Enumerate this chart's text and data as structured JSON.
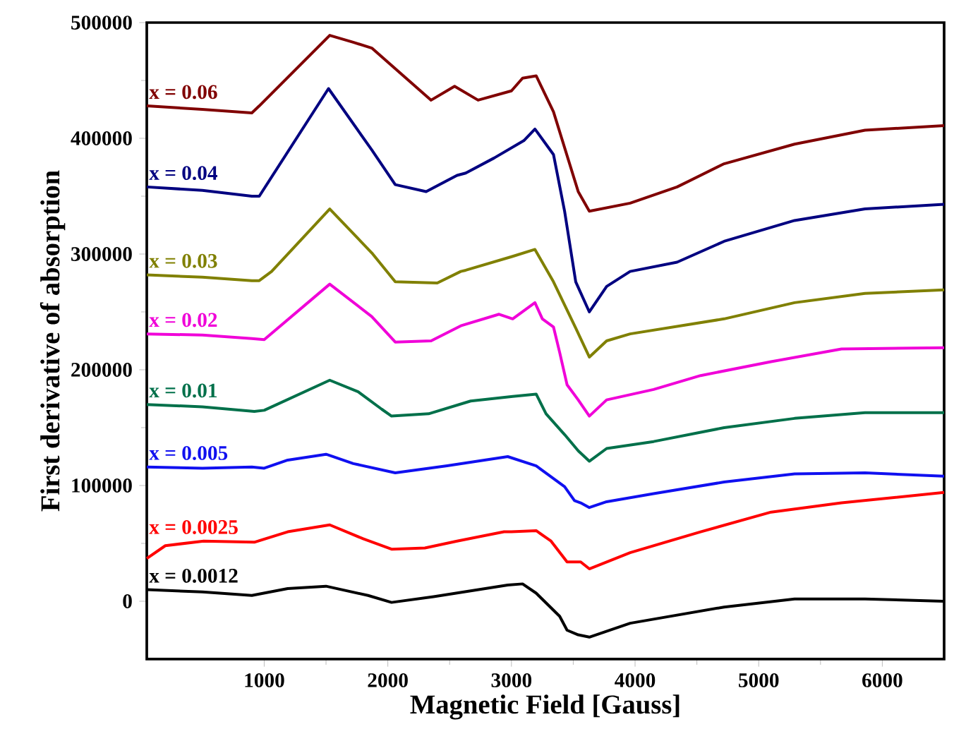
{
  "chart_data": {
    "type": "line",
    "xlabel": "Magnetic Field [Gauss]",
    "ylabel": "First derivative of absorption",
    "xlim": [
      50,
      6500
    ],
    "ylim": [
      -50000,
      500000
    ],
    "xticks": [
      1000,
      2000,
      3000,
      4000,
      5000,
      6000
    ],
    "yticks": [
      0,
      100000,
      200000,
      300000,
      400000,
      500000
    ],
    "grid": false,
    "legend": false,
    "marker": "none",
    "line_style": "solid",
    "series": [
      {
        "name": "x = 0.06",
        "color": "#800000",
        "x": [
          50,
          500,
          900,
          960,
          1530,
          1720,
          1870,
          2350,
          2540,
          2730,
          3000,
          3090,
          3200,
          3340,
          3540,
          3630,
          3960,
          4340,
          4720,
          5290,
          5860,
          6500
        ],
        "values": [
          428000,
          425000,
          422000,
          428000,
          489000,
          483000,
          478000,
          433000,
          445000,
          433000,
          441000,
          452000,
          454000,
          423000,
          354000,
          337000,
          344000,
          358000,
          378000,
          395000,
          407000,
          411000
        ]
      },
      {
        "name": "x = 0.04",
        "color": "#000080",
        "x": [
          50,
          500,
          900,
          960,
          1520,
          1870,
          2060,
          2310,
          2560,
          2630,
          2860,
          3100,
          3190,
          3340,
          3430,
          3520,
          3630,
          3770,
          3960,
          4340,
          4720,
          5290,
          5860,
          6500
        ],
        "values": [
          358000,
          355000,
          350000,
          350000,
          443000,
          390000,
          360000,
          354000,
          368000,
          370000,
          383000,
          398000,
          408000,
          386000,
          337000,
          276000,
          250000,
          272000,
          285000,
          293000,
          311000,
          329000,
          339000,
          343000
        ]
      },
      {
        "name": "x = 0.03",
        "color": "#808000",
        "x": [
          50,
          500,
          900,
          960,
          1060,
          1530,
          1870,
          2060,
          2400,
          2590,
          2630,
          3010,
          3190,
          3340,
          3520,
          3630,
          3770,
          3960,
          4720,
          5290,
          5860,
          6500
        ],
        "values": [
          282000,
          280000,
          277000,
          277000,
          285000,
          339000,
          301000,
          276000,
          275000,
          285000,
          286000,
          298000,
          304000,
          276000,
          236000,
          211000,
          225000,
          231000,
          244000,
          258000,
          266000,
          269000
        ]
      },
      {
        "name": "x = 0.02",
        "color": "#f000d8",
        "x": [
          50,
          500,
          900,
          1000,
          1530,
          1870,
          2060,
          2350,
          2590,
          2900,
          3010,
          3190,
          3250,
          3340,
          3390,
          3450,
          3540,
          3630,
          3770,
          4150,
          4530,
          5100,
          5670,
          6500
        ],
        "values": [
          231000,
          230000,
          227000,
          226000,
          274000,
          246000,
          224000,
          225000,
          238000,
          248000,
          244000,
          258000,
          244000,
          237000,
          215000,
          187000,
          174000,
          160000,
          174000,
          183000,
          195000,
          207000,
          218000,
          219000
        ]
      },
      {
        "name": "x = 0.01",
        "color": "#00704a",
        "x": [
          50,
          500,
          920,
          1000,
          1530,
          1760,
          1950,
          2030,
          2330,
          2670,
          3010,
          3200,
          3280,
          3430,
          3540,
          3630,
          3770,
          4150,
          4720,
          5290,
          5860,
          6500
        ],
        "values": [
          170000,
          168000,
          164000,
          165000,
          191000,
          181000,
          166000,
          160000,
          162000,
          173000,
          177000,
          179000,
          162000,
          144000,
          130000,
          121000,
          132000,
          138000,
          150000,
          158000,
          163000,
          163000
        ]
      },
      {
        "name": "x = 0.005",
        "color": "#1010f0",
        "x": [
          50,
          500,
          900,
          1000,
          1190,
          1500,
          1530,
          1720,
          2060,
          2480,
          2970,
          3200,
          3430,
          3510,
          3560,
          3630,
          3770,
          4150,
          4720,
          5290,
          5860,
          6500
        ],
        "values": [
          116000,
          115000,
          116000,
          115000,
          122000,
          127000,
          126000,
          119000,
          111000,
          117000,
          125000,
          117000,
          99000,
          87000,
          85000,
          81000,
          86000,
          93000,
          103000,
          110000,
          111000,
          108000
        ]
      },
      {
        "name": "x = 0.0025",
        "color": "#ff0000",
        "x": [
          50,
          200,
          510,
          920,
          1190,
          1530,
          1800,
          2030,
          2300,
          2560,
          2940,
          3000,
          3200,
          3320,
          3450,
          3560,
          3630,
          3960,
          4530,
          5100,
          5670,
          6500
        ],
        "values": [
          37000,
          48000,
          52000,
          51000,
          60000,
          66000,
          54000,
          45000,
          46000,
          52000,
          60000,
          60000,
          61000,
          52000,
          34000,
          34000,
          28000,
          42000,
          60000,
          77000,
          85000,
          94000
        ]
      },
      {
        "name": "x = 0.0012",
        "color": "#000000",
        "x": [
          50,
          500,
          900,
          1190,
          1500,
          1840,
          2030,
          2370,
          2670,
          2970,
          3090,
          3200,
          3390,
          3450,
          3540,
          3630,
          3960,
          4720,
          5290,
          5860,
          6500
        ],
        "values": [
          10000,
          8000,
          5000,
          11000,
          13000,
          5000,
          -1000,
          4000,
          9000,
          14000,
          15000,
          7000,
          -13000,
          -25000,
          -29000,
          -31000,
          -19000,
          -5000,
          2000,
          2000,
          0
        ]
      }
    ]
  }
}
